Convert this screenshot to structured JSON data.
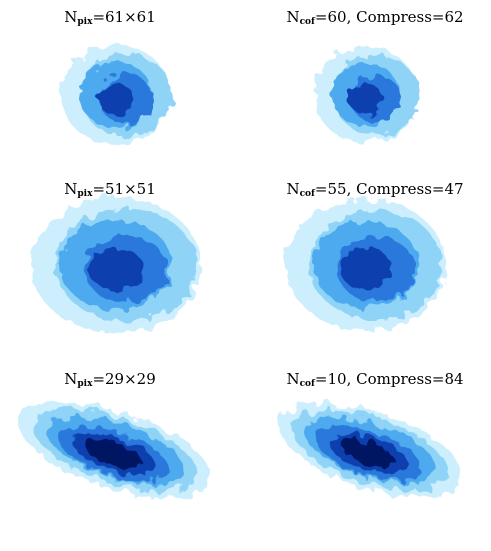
{
  "panels": [
    {
      "main": "N",
      "sub": "pix",
      "rest": "=61×61"
    },
    {
      "main": "N",
      "sub": "cof",
      "rest": "=60, Compress=62"
    },
    {
      "main": "N",
      "sub": "pix",
      "rest": "=51×51"
    },
    {
      "main": "N",
      "sub": "cof",
      "rest": "=55, Compress=47"
    },
    {
      "main": "N",
      "sub": "pix",
      "rest": "=29×29"
    },
    {
      "main": "N",
      "sub": "cof",
      "rest": "=10, Compress=84"
    }
  ]
}
